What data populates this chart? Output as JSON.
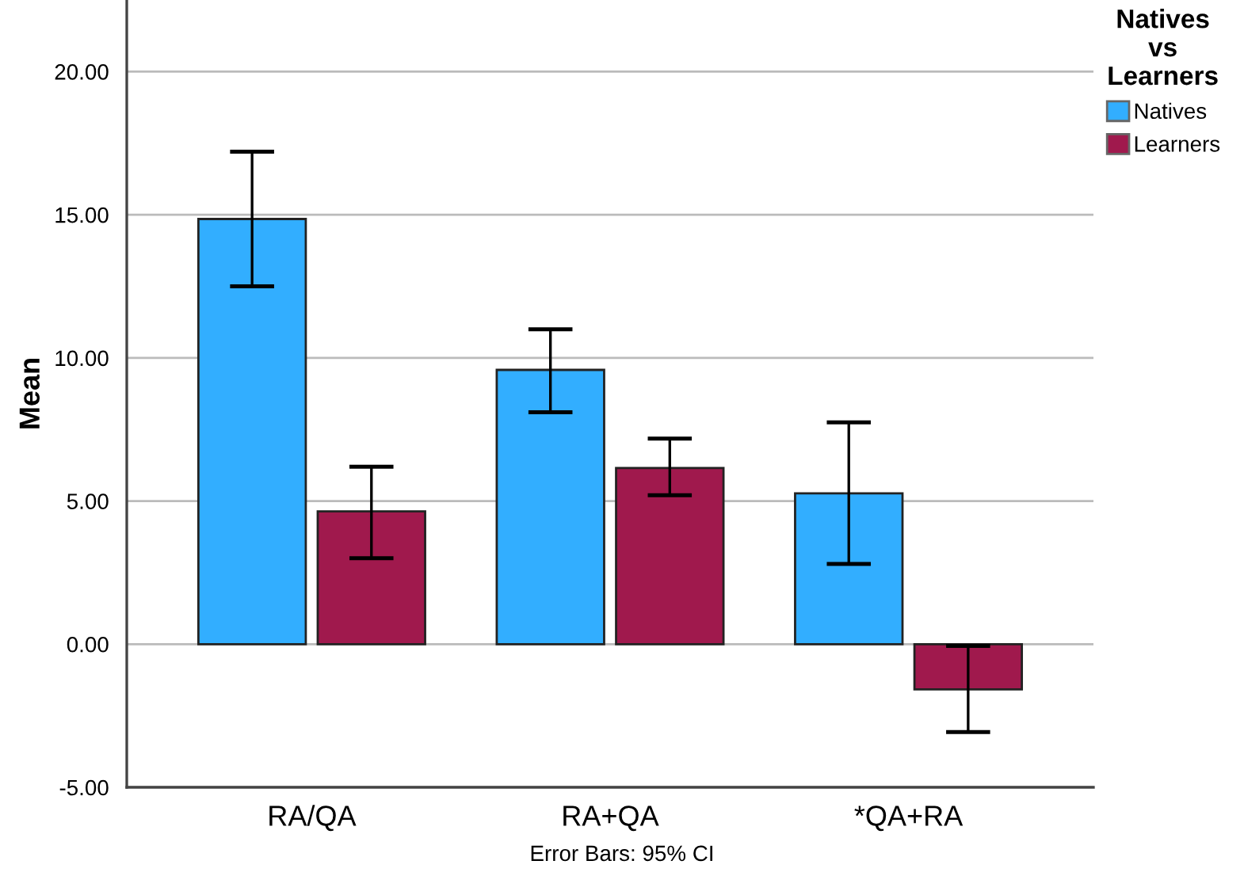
{
  "chart_data": {
    "type": "bar",
    "ylabel": "Mean",
    "legend_title": "Natives\nvs\nLearners",
    "categories": [
      "RA/QA",
      "RA+QA",
      "*QA+RA"
    ],
    "series": [
      {
        "name": "Natives",
        "color": "#32aeff",
        "values": [
          14.85,
          9.58,
          5.27
        ],
        "errors": [
          [
            12.5,
            17.2
          ],
          [
            8.1,
            11.0
          ],
          [
            2.8,
            7.75
          ]
        ]
      },
      {
        "name": "Learners",
        "color": "#a0194d",
        "values": [
          4.64,
          6.15,
          -1.58
        ],
        "errors": [
          [
            3.0,
            6.2
          ],
          [
            5.2,
            7.18
          ],
          [
            -3.07,
            -0.06
          ]
        ]
      }
    ],
    "ylim": [
      -5,
      22.5
    ],
    "yticks": [
      {
        "value": -5,
        "label": "-5.00"
      },
      {
        "value": 0,
        "label": "0.00"
      },
      {
        "value": 5,
        "label": "5.00"
      },
      {
        "value": 10,
        "label": "10.00"
      },
      {
        "value": 15,
        "label": "15.00"
      },
      {
        "value": 20,
        "label": "20.00"
      }
    ],
    "grid": "y",
    "legend": "top right",
    "annotations": [
      "Error Bars: 95% CI"
    ]
  }
}
